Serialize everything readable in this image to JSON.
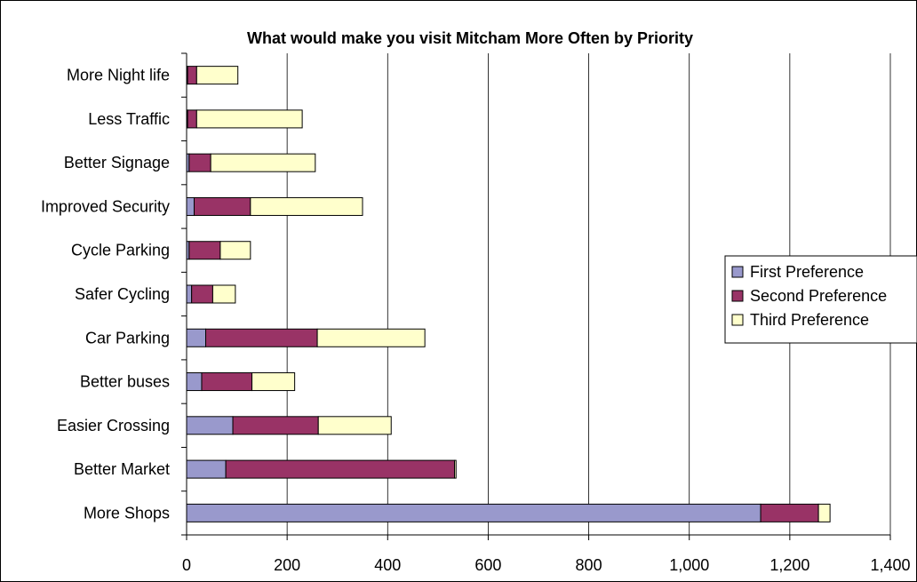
{
  "chart_data": {
    "type": "bar",
    "orientation": "horizontal",
    "stacked": true,
    "title": "What would make you visit Mitcham More Often by Priority",
    "categories": [
      "More Shops",
      "Better Market",
      "Easier Crossing",
      "Better buses",
      "Car Parking",
      "Safer Cycling",
      "Cycle Parking",
      "Improved Security",
      "Better Signage",
      "Less Traffic",
      "More Night life"
    ],
    "series": [
      {
        "name": "First Preference",
        "color": "#9999cc",
        "values": [
          1142,
          78,
          92,
          30,
          38,
          10,
          5,
          15,
          5,
          2,
          2
        ]
      },
      {
        "name": "Second Preference",
        "color": "#993366",
        "values": [
          115,
          455,
          170,
          100,
          222,
          42,
          62,
          112,
          43,
          18,
          18
        ]
      },
      {
        "name": "Third Preference",
        "color": "#ffffcc",
        "values": [
          23,
          3,
          145,
          85,
          214,
          45,
          60,
          223,
          208,
          210,
          82
        ]
      }
    ],
    "x_ticks": [
      "0",
      "200",
      "400",
      "600",
      "800",
      "1,000",
      "1,200",
      "1,400"
    ],
    "xlim": [
      0,
      1400
    ],
    "grid": true,
    "legend_position": "right"
  }
}
